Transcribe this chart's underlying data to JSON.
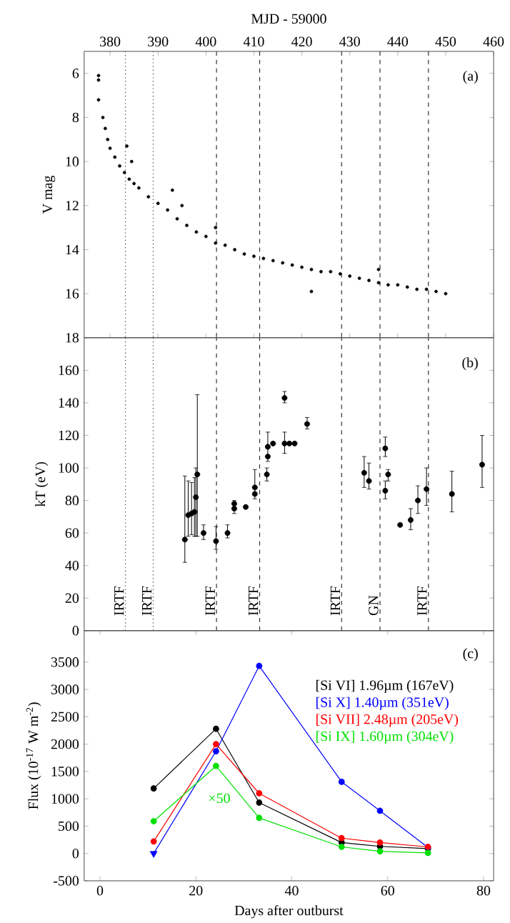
{
  "chart_data": [
    {
      "type": "scatter",
      "xlabel": "MJD - 59000",
      "ylabel": "V mag",
      "annotations": [
        "(a)"
      ],
      "color": "#000000",
      "marker": "circle",
      "xlim": [
        374.6,
        460
      ],
      "xticks": [
        380,
        390,
        400,
        410,
        420,
        430,
        440,
        450,
        460
      ],
      "ylim": [
        18,
        5
      ],
      "yticks": [
        6,
        8,
        10,
        12,
        14,
        16,
        18
      ],
      "x": [
        377.6,
        377.6,
        377.6,
        378.5,
        379,
        379.5,
        380,
        381,
        382,
        383,
        384,
        385,
        386,
        388,
        390,
        392,
        394,
        396,
        398,
        400,
        402,
        404,
        406,
        408,
        410,
        412,
        414,
        416,
        418,
        420,
        422,
        424,
        426,
        428,
        430,
        432,
        434,
        436,
        438,
        440,
        442,
        444,
        446,
        448,
        450,
        383.5,
        384.5,
        393,
        395,
        402,
        422,
        436
      ],
      "values": [
        6.1,
        6.3,
        7.2,
        8.0,
        8.5,
        9.0,
        9.4,
        9.8,
        10.2,
        10.5,
        10.8,
        11.0,
        11.2,
        11.6,
        11.9,
        12.2,
        12.6,
        12.9,
        13.2,
        13.4,
        13.7,
        13.8,
        14.0,
        14.2,
        14.3,
        14.4,
        14.5,
        14.6,
        14.7,
        14.8,
        14.9,
        15.0,
        15.0,
        15.1,
        15.2,
        15.3,
        15.4,
        15.5,
        15.6,
        15.6,
        15.7,
        15.8,
        15.8,
        15.9,
        16.0,
        9.3,
        10.0,
        11.3,
        12.0,
        13.0,
        15.9,
        14.9
      ],
      "ref_lines": [
        {
          "axis": "x",
          "value": 383.2,
          "line_style": "dotted"
        },
        {
          "axis": "x",
          "value": 389.0,
          "line_style": "dotted"
        },
        {
          "axis": "x",
          "value": 402.2,
          "line_style": "dashed"
        },
        {
          "axis": "x",
          "value": 411.2,
          "line_style": "dashed"
        },
        {
          "axis": "x",
          "value": 428.3,
          "line_style": "dashed"
        },
        {
          "axis": "x",
          "value": 436.3,
          "line_style": "dashed"
        },
        {
          "axis": "x",
          "value": 446.4,
          "line_style": "dashed"
        }
      ]
    },
    {
      "type": "scatter",
      "ylabel": "kT (eV)",
      "annotations": [
        "(b)"
      ],
      "color": "#000000",
      "marker": "circle",
      "tick_labels": "y",
      "xlim": [
        374.6,
        460
      ],
      "ylim": [
        0,
        180
      ],
      "yticks": [
        0,
        20,
        40,
        60,
        80,
        100,
        120,
        140,
        160
      ],
      "x": [
        395.6,
        396.3,
        397.0,
        397.6,
        397.9,
        398.2,
        399.5,
        402.1,
        404.5,
        405.9,
        405.9,
        408.3,
        410.2,
        410.2,
        412.7,
        412.9,
        412.9,
        414.0,
        416.4,
        416.4,
        417.4,
        418.5,
        421.1,
        433.0,
        434.0,
        437.4,
        437.4,
        438.0,
        440.5,
        442.7,
        444.2,
        446.0,
        451.3,
        457.6
      ],
      "values": [
        56,
        71,
        72,
        73,
        82,
        96,
        60,
        55,
        60,
        75,
        78,
        76,
        84,
        88,
        96,
        107,
        113,
        115,
        143,
        115,
        115,
        115,
        127,
        97,
        92,
        112,
        86,
        96,
        65,
        68,
        80,
        87,
        84,
        102
      ],
      "errors": [
        [
          42,
          95
        ],
        [
          58,
          92
        ],
        [
          59,
          91
        ],
        [
          58,
          94
        ],
        [
          58,
          100
        ],
        [
          58,
          145
        ],
        [
          56,
          65
        ],
        [
          50,
          64
        ],
        [
          57,
          65
        ],
        [
          72,
          80
        ],
        null,
        null,
        null,
        [
          81,
          99
        ],
        [
          92,
          100
        ],
        null,
        [
          104,
          122
        ],
        null,
        [
          140,
          147
        ],
        [
          109,
          122
        ],
        null,
        null,
        [
          124,
          131
        ],
        [
          88,
          107
        ],
        [
          87,
          103
        ],
        [
          107,
          119
        ],
        [
          81,
          92
        ],
        [
          92,
          99
        ],
        null,
        [
          62,
          75
        ],
        [
          72,
          89
        ],
        [
          77,
          100
        ],
        [
          73,
          98
        ],
        [
          88,
          120
        ]
      ],
      "ref_lines": [
        {
          "axis": "x",
          "value": 383.2,
          "line_style": "dotted",
          "label": "IRTF"
        },
        {
          "axis": "x",
          "value": 389.0,
          "line_style": "dotted",
          "label": "IRTF"
        },
        {
          "axis": "x",
          "value": 402.2,
          "line_style": "dashed",
          "label": "IRTF"
        },
        {
          "axis": "x",
          "value": 411.2,
          "line_style": "dashed",
          "label": "IRTF"
        },
        {
          "axis": "x",
          "value": 428.3,
          "line_style": "dashed",
          "label": "IRTF"
        },
        {
          "axis": "x",
          "value": 436.3,
          "line_style": "dashed",
          "label": "GN"
        },
        {
          "axis": "x",
          "value": 446.4,
          "line_style": "dashed",
          "label": "IRTF"
        }
      ]
    },
    {
      "type": "line",
      "xlabel": "Days after outburst",
      "ylabel": "Flux (10$^{-17}$ W m$^{-2}$)",
      "marker": "circle",
      "legend": "top right",
      "annotations": [
        "(c)",
        "×50"
      ],
      "xlim": [
        -3.3,
        82.1
      ],
      "xticks": [
        0,
        20,
        40,
        60,
        80
      ],
      "ylim": [
        -500,
        4075
      ],
      "yticks": [
        -500,
        0,
        500,
        1000,
        1500,
        2000,
        2500,
        3000,
        3500
      ],
      "x": [
        11.2,
        24.2,
        33.2,
        50.4,
        58.4,
        68.4
      ],
      "series": [
        {
          "name": "[Si VI] 1.96µm (167eV)",
          "color": "#000000",
          "values": [
            1190,
            2280,
            930,
            200,
            130,
            90
          ]
        },
        {
          "name": "[Si X]  1.40µm (351eV)",
          "color": "#0000ff",
          "values": [
            0,
            1870,
            3430,
            1310,
            780,
            110
          ]
        },
        {
          "type": "scatter",
          "marker": "triangle",
          "color": "#0000ff",
          "x": [
            11.2
          ],
          "values": [
            0
          ]
        },
        {
          "name": "[Si VII] 2.48µm (205eV)",
          "color": "#ff0000",
          "values": [
            220,
            2000,
            1100,
            280,
            200,
            120
          ]
        },
        {
          "name": "[Si IX] 1.60µm (304eV)",
          "color": "#00e000",
          "values": [
            590,
            1600,
            650,
            120,
            40,
            10
          ]
        }
      ]
    }
  ]
}
